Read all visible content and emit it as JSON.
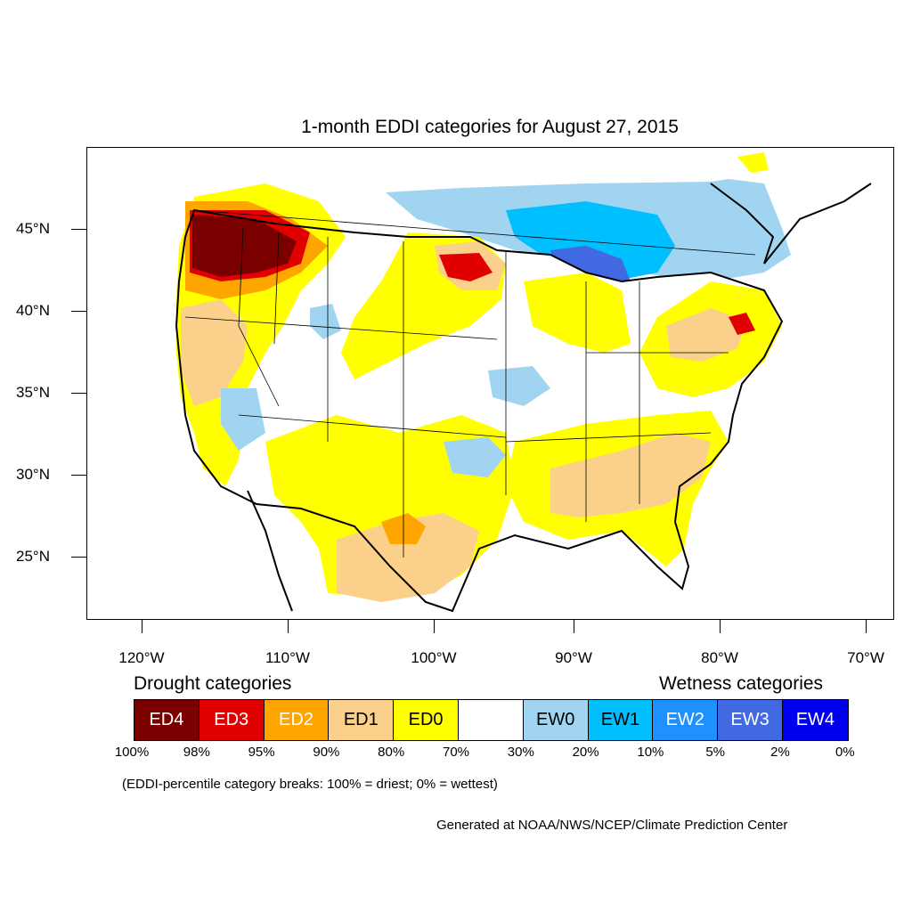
{
  "title": "1-month EDDI categories for August 27, 2015",
  "latitude_labels": [
    "45°N",
    "40°N",
    "35°N",
    "30°N",
    "25°N"
  ],
  "longitude_labels": [
    "120°W",
    "110°W",
    "100°W",
    "90°W",
    "80°W",
    "70°W"
  ],
  "drought_heading": "Drought categories",
  "wetness_heading": "Wetness categories",
  "legend": [
    {
      "label": "ED4",
      "color": "#7a0000",
      "text_color": "#ffffff"
    },
    {
      "label": "ED3",
      "color": "#e00000",
      "text_color": "#ffffff"
    },
    {
      "label": "ED2",
      "color": "#ffa500",
      "text_color": "#ffffff"
    },
    {
      "label": "ED1",
      "color": "#fbd08a",
      "text_color": "#000000"
    },
    {
      "label": "ED0",
      "color": "#ffff00",
      "text_color": "#000000"
    },
    {
      "label": "",
      "color": "#ffffff",
      "text_color": "#000000"
    },
    {
      "label": "EW0",
      "color": "#a0d4f0",
      "text_color": "#000000"
    },
    {
      "label": "EW1",
      "color": "#00bfff",
      "text_color": "#000000"
    },
    {
      "label": "EW2",
      "color": "#1e90ff",
      "text_color": "#ffffff"
    },
    {
      "label": "EW3",
      "color": "#4169e1",
      "text_color": "#ffffff"
    },
    {
      "label": "EW4",
      "color": "#0000f0",
      "text_color": "#ffffff"
    }
  ],
  "percentile_breaks": [
    "100%",
    "98%",
    "95%",
    "90%",
    "80%",
    "70%",
    "30%",
    "20%",
    "10%",
    "5%",
    "2%",
    "0%"
  ],
  "note": "(EDDI-percentile category breaks: 100% = driest; 0% = wettest)",
  "credit": "Generated at NOAA/NWS/NCEP/Climate Prediction Center"
}
